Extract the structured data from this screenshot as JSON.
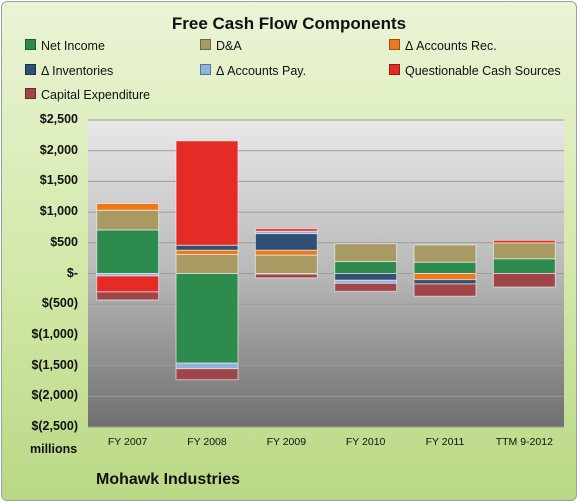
{
  "chart_data": {
    "type": "bar",
    "stacked": true,
    "title": "Free Cash Flow Components",
    "categories": [
      "FY 2007",
      "FY 2008",
      "FY 2009",
      "FY 2010",
      "FY 2011",
      "TTM 9-2012"
    ],
    "y_tick_labels": [
      "$2,500",
      "$2,000",
      "$1,500",
      "$1,000",
      "$500",
      "$-",
      "$(500)",
      "$(1,000)",
      "$(1,500)",
      "$(2,000)",
      "$(2,500)"
    ],
    "ylim": [
      -2500,
      2500
    ],
    "units_label": "millions",
    "legend_position": "top",
    "grid": true,
    "series": [
      {
        "name": "Net Income",
        "color": "#2e8b4e",
        "values": [
          710,
          -1460,
          -10,
          195,
          185,
          240
        ]
      },
      {
        "name": "D&A",
        "color": "#a89a63",
        "values": [
          320,
          310,
          300,
          290,
          280,
          260
        ]
      },
      {
        "name": "Δ Accounts Rec.",
        "color": "#ec7a1c",
        "values": [
          110,
          70,
          80,
          0,
          -100,
          0
        ]
      },
      {
        "name": "Δ Inventories",
        "color": "#2f4f73",
        "values": [
          0,
          80,
          270,
          -110,
          -70,
          0
        ]
      },
      {
        "name": "Δ Accounts Pay.",
        "color": "#8fb3dc",
        "values": [
          -40,
          -90,
          40,
          -50,
          0,
          0
        ]
      },
      {
        "name": "Questionable Cash Sources",
        "color": "#e52b25",
        "values": [
          -260,
          1700,
          40,
          0,
          0,
          40
        ]
      },
      {
        "name": "Capital Expenditure",
        "color": "#a0464a",
        "values": [
          -130,
          -180,
          -60,
          -130,
          -200,
          -220
        ]
      }
    ]
  },
  "footer": {
    "company": "Mohawk Industries"
  }
}
